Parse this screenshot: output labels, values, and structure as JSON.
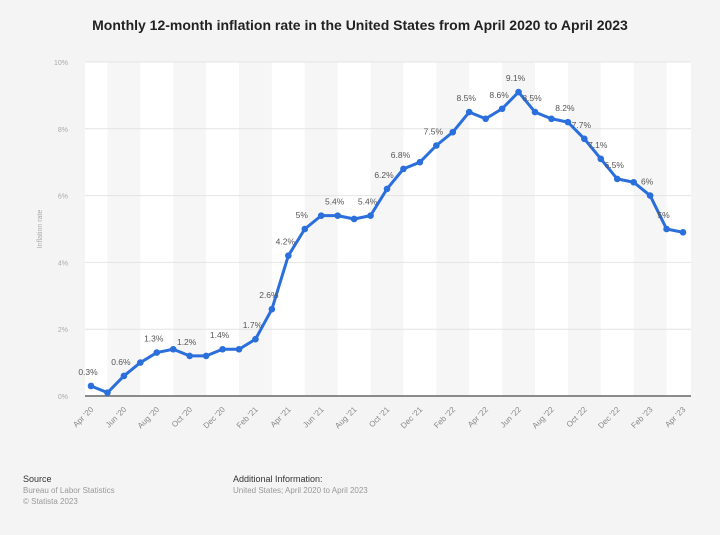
{
  "chart_data": {
    "type": "line",
    "title": "Monthly 12-month inflation rate in the United States from April 2020 to April 2023",
    "ylabel": "Inflation rate",
    "xlabel": "",
    "ylim": [
      0,
      10
    ],
    "yticks": [
      "0%",
      "2%",
      "4%",
      "6%",
      "8%",
      "10%"
    ],
    "grid": true,
    "x": [
      "Apr '20",
      "May '20",
      "Jun '20",
      "Jul '20",
      "Aug '20",
      "Sep '20",
      "Oct '20",
      "Nov '20",
      "Dec '20",
      "Jan '21",
      "Feb '21",
      "Mar '21",
      "Apr '21",
      "May '21",
      "Jun '21",
      "Jul '21",
      "Aug '21",
      "Sep '21",
      "Oct '21",
      "Nov '21",
      "Dec '21",
      "Jan '22",
      "Feb '22",
      "Mar '22",
      "Apr '22",
      "May '22",
      "Jun '22",
      "Jul '22",
      "Aug '22",
      "Sep '22",
      "Oct '22",
      "Nov '22",
      "Dec '22",
      "Jan '23",
      "Feb '23",
      "Mar '23",
      "Apr '23"
    ],
    "xtick_labels": [
      "Apr '20",
      "Jun '20",
      "Aug '20",
      "Oct '20",
      "Dec '20",
      "Feb '21",
      "Apr '21",
      "Jun '21",
      "Aug '21",
      "Oct '21",
      "Dec '21",
      "Feb '22",
      "Apr '22",
      "Jun '22",
      "Aug '22",
      "Oct '22",
      "Dec '22",
      "Feb '23",
      "Apr '23"
    ],
    "series": [
      {
        "values": [
          0.3,
          0.1,
          0.6,
          1.0,
          1.3,
          1.4,
          1.2,
          1.2,
          1.4,
          1.4,
          1.7,
          2.6,
          4.2,
          5.0,
          5.4,
          5.4,
          5.3,
          5.4,
          6.2,
          6.8,
          7.0,
          7.5,
          7.9,
          8.5,
          8.3,
          8.6,
          9.1,
          8.5,
          8.3,
          8.2,
          7.7,
          7.1,
          6.5,
          6.4,
          6.0,
          5.0,
          4.9
        ],
        "color": "#2a6fdb"
      }
    ],
    "data_labels": [
      {
        "index": 0,
        "text": "0.3%"
      },
      {
        "index": 2,
        "text": "0.6%"
      },
      {
        "index": 4,
        "text": "1.3%"
      },
      {
        "index": 6,
        "text": "1.2%"
      },
      {
        "index": 8,
        "text": "1.4%"
      },
      {
        "index": 10,
        "text": "1.7%"
      },
      {
        "index": 11,
        "text": "2.6%"
      },
      {
        "index": 12,
        "text": "4.2%"
      },
      {
        "index": 13,
        "text": "5%"
      },
      {
        "index": 15,
        "text": "5.4%"
      },
      {
        "index": 17,
        "text": "5.4%"
      },
      {
        "index": 18,
        "text": "6.2%"
      },
      {
        "index": 19,
        "text": "6.8%"
      },
      {
        "index": 21,
        "text": "7.5%"
      },
      {
        "index": 23,
        "text": "8.5%"
      },
      {
        "index": 25,
        "text": "8.6%"
      },
      {
        "index": 26,
        "text": "9.1%"
      },
      {
        "index": 27,
        "text": "8.5%"
      },
      {
        "index": 29,
        "text": "8.2%"
      },
      {
        "index": 30,
        "text": "7.7%"
      },
      {
        "index": 31,
        "text": "7.1%"
      },
      {
        "index": 32,
        "text": "6.5%"
      },
      {
        "index": 34,
        "text": "6%"
      },
      {
        "index": 35,
        "text": "5%"
      }
    ]
  },
  "footer": {
    "source_heading": "Source",
    "source_line1": "Bureau of Labor Statistics",
    "source_line2": "© Statista 2023",
    "info_heading": "Additional Information:",
    "info_text": "United States; April 2020 to April 2023"
  }
}
